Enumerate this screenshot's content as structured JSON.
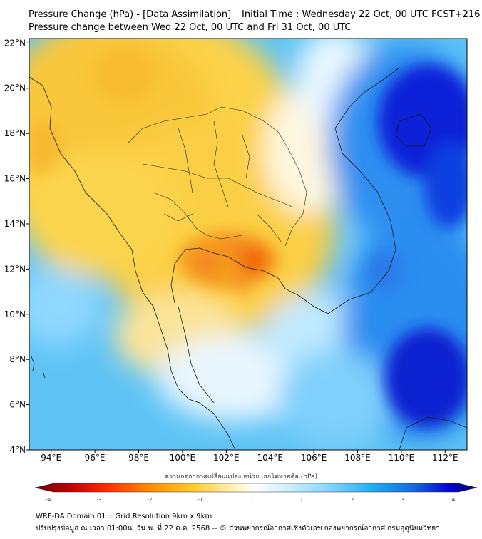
{
  "title": "Pressure Change (hPa) - [Data Assimilation] _ Initial Time : Wednesday 22 Oct, 00 UTC FCST+216",
  "subtitle": "Pressure change between Wed 22 Oct, 00 UTC and Fri 31 Oct, 00 UTC",
  "map": {
    "lat_labels": [
      "22°N",
      "20°N",
      "18°N",
      "16°N",
      "14°N",
      "12°N",
      "10°N",
      "8°N",
      "6°N",
      "4°N"
    ],
    "lon_labels": [
      "94°E",
      "96°E",
      "98°E",
      "100°E",
      "102°E",
      "104°E",
      "106°E",
      "108°E",
      "110°E",
      "112°E"
    ],
    "lat_values": [
      22,
      20,
      18,
      16,
      14,
      12,
      10,
      8,
      6,
      4
    ],
    "lon_values": [
      94,
      96,
      98,
      100,
      102,
      104,
      106,
      108,
      110,
      112
    ],
    "lon_range": [
      93,
      113
    ],
    "lat_range": [
      4,
      22.2
    ]
  },
  "colorbar": {
    "title": "ความกดอากาศเปลี่ยนแปลง หน่วย เฮกโตพาสคัล (hPa)",
    "tick_labels": [
      "-4",
      "-3",
      "-2",
      "-1",
      "0",
      "1",
      "2",
      "3",
      "4"
    ],
    "tick_values": [
      -4,
      -3,
      -2,
      -1,
      0,
      1,
      2,
      3,
      4
    ],
    "range": [
      -4,
      4
    ],
    "colors": [
      "#6b0000",
      "#d40000",
      "#ff4400",
      "#ff9900",
      "#ffd84a",
      "#fff6c8",
      "#ffffff",
      "#cdeeff",
      "#8fdcff",
      "#27b4f5",
      "#1f78e8",
      "#0000d0",
      "#0a0a70"
    ]
  },
  "footer": {
    "line1": "WRF-DA Domain 01 :: Grid Resolution 9km x 9km",
    "line2": "ปรับปรุงข้อมูล ณ เวลา 01:00น. วัน พ. ที่ 22 ต.ค. 2568 -- © ส่วนพยากรณ์อากาศเชิงตัวเลข กองพยากรณ์อากาศ กรมอุตุนิยมวิทยา"
  }
}
